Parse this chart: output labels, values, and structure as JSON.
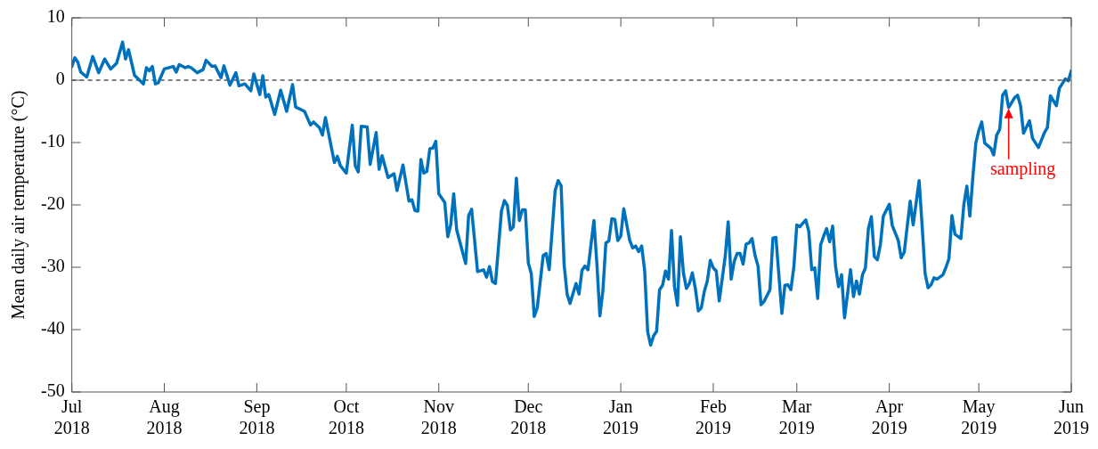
{
  "chart_data": {
    "type": "line",
    "ylabel": "Mean daily air temperature (°C)",
    "xlim": [
      "2018-07-01",
      "2019-06-01"
    ],
    "xticks": [
      {
        "value": "2018-07-01",
        "label": "Jul 2018"
      },
      {
        "value": "2018-08-01",
        "label": "Aug 2018"
      },
      {
        "value": "2018-09-01",
        "label": "Sep 2018"
      },
      {
        "value": "2018-10-01",
        "label": "Oct 2018"
      },
      {
        "value": "2018-11-01",
        "label": "Nov 2018"
      },
      {
        "value": "2018-12-01",
        "label": "Dec 2018"
      },
      {
        "value": "2019-01-01",
        "label": "Jan 2019"
      },
      {
        "value": "2019-02-01",
        "label": "Feb 2019"
      },
      {
        "value": "2019-03-01",
        "label": "Mar 2019"
      },
      {
        "value": "2019-04-01",
        "label": "Apr 2019"
      },
      {
        "value": "2019-05-01",
        "label": "May 2019"
      },
      {
        "value": "2019-06-01",
        "label": "Jun 2019"
      }
    ],
    "ylim": [
      -50,
      10
    ],
    "yticks": [
      -50,
      -40,
      -30,
      -20,
      -10,
      0,
      10
    ],
    "grid": false,
    "legend": false,
    "marker": "none",
    "line_style": "solid",
    "ref_lines": [
      {
        "axis": "y",
        "value": 0,
        "color": "#000000",
        "line_style": "dashed"
      }
    ],
    "annotations": [
      {
        "text": "sampling",
        "x": "2019-05-11",
        "y": -4.4
      }
    ],
    "x": [
      "2018-07-01",
      "2018-07-02",
      "2018-07-03",
      "2018-07-04",
      "2018-07-06",
      "2018-07-08",
      "2018-07-10",
      "2018-07-12",
      "2018-07-14",
      "2018-07-16",
      "2018-07-18",
      "2018-07-19",
      "2018-07-20",
      "2018-07-22",
      "2018-07-25",
      "2018-07-26",
      "2018-07-27",
      "2018-07-28",
      "2018-07-29",
      "2018-07-30",
      "2018-08-01",
      "2018-08-04",
      "2018-08-05",
      "2018-08-06",
      "2018-08-08",
      "2018-08-09",
      "2018-08-10",
      "2018-08-12",
      "2018-08-14",
      "2018-08-15",
      "2018-08-17",
      "2018-08-18",
      "2018-08-20",
      "2018-08-21",
      "2018-08-23",
      "2018-08-25",
      "2018-08-26",
      "2018-08-28",
      "2018-08-30",
      "2018-08-31",
      "2018-09-02",
      "2018-09-03",
      "2018-09-04",
      "2018-09-05",
      "2018-09-07",
      "2018-09-09",
      "2018-09-11",
      "2018-09-13",
      "2018-09-14",
      "2018-09-17",
      "2018-09-19",
      "2018-09-20",
      "2018-09-22",
      "2018-09-23",
      "2018-09-24",
      "2018-09-27",
      "2018-09-28",
      "2018-09-29",
      "2018-10-01",
      "2018-10-03",
      "2018-10-04",
      "2018-10-05",
      "2018-10-06",
      "2018-10-08",
      "2018-10-09",
      "2018-10-11",
      "2018-10-12",
      "2018-10-13",
      "2018-10-15",
      "2018-10-17",
      "2018-10-18",
      "2018-10-20",
      "2018-10-22",
      "2018-10-23",
      "2018-10-24",
      "2018-10-25",
      "2018-10-26",
      "2018-10-27",
      "2018-10-28",
      "2018-10-29",
      "2018-10-30",
      "2018-10-31",
      "2018-11-01",
      "2018-11-03",
      "2018-11-04",
      "2018-11-05",
      "2018-11-06",
      "2018-11-07",
      "2018-11-09",
      "2018-11-10",
      "2018-11-11",
      "2018-11-12",
      "2018-11-14",
      "2018-11-16",
      "2018-11-17",
      "2018-11-18",
      "2018-11-19",
      "2018-11-20",
      "2018-11-22",
      "2018-11-23",
      "2018-11-24",
      "2018-11-25",
      "2018-11-26",
      "2018-11-27",
      "2018-11-28",
      "2018-11-29",
      "2018-11-30",
      "2018-12-01",
      "2018-12-02",
      "2018-12-03",
      "2018-12-04",
      "2018-12-06",
      "2018-12-07",
      "2018-12-08",
      "2018-12-10",
      "2018-12-11",
      "2018-12-12",
      "2018-12-13",
      "2018-12-14",
      "2018-12-15",
      "2018-12-17",
      "2018-12-18",
      "2018-12-19",
      "2018-12-20",
      "2018-12-21",
      "2018-12-23",
      "2018-12-24",
      "2018-12-25",
      "2018-12-26",
      "2018-12-27",
      "2018-12-28",
      "2018-12-29",
      "2018-12-30",
      "2018-12-31",
      "2019-01-01",
      "2019-01-02",
      "2019-01-04",
      "2019-01-05",
      "2019-01-06",
      "2019-01-07",
      "2019-01-08",
      "2019-01-09",
      "2019-01-10",
      "2019-01-11",
      "2019-01-12",
      "2019-01-13",
      "2019-01-14",
      "2019-01-15",
      "2019-01-16",
      "2019-01-17",
      "2019-01-18",
      "2019-01-19",
      "2019-01-20",
      "2019-01-21",
      "2019-01-22",
      "2019-01-23",
      "2019-01-24",
      "2019-01-25",
      "2019-01-26",
      "2019-01-27",
      "2019-01-28",
      "2019-01-29",
      "2019-01-30",
      "2019-01-31",
      "2019-02-01",
      "2019-02-02",
      "2019-02-03",
      "2019-02-05",
      "2019-02-06",
      "2019-02-07",
      "2019-02-08",
      "2019-02-09",
      "2019-02-10",
      "2019-02-11",
      "2019-02-12",
      "2019-02-13",
      "2019-02-14",
      "2019-02-15",
      "2019-02-16",
      "2019-02-17",
      "2019-02-18",
      "2019-02-20",
      "2019-02-21",
      "2019-02-22",
      "2019-02-24",
      "2019-02-25",
      "2019-02-26",
      "2019-02-27",
      "2019-02-28",
      "2019-03-01",
      "2019-03-02",
      "2019-03-04",
      "2019-03-05",
      "2019-03-06",
      "2019-03-07",
      "2019-03-08",
      "2019-03-09",
      "2019-03-10",
      "2019-03-11",
      "2019-03-12",
      "2019-03-13",
      "2019-03-14",
      "2019-03-15",
      "2019-03-16",
      "2019-03-17",
      "2019-03-18",
      "2019-03-19",
      "2019-03-20",
      "2019-03-21",
      "2019-03-22",
      "2019-03-23",
      "2019-03-24",
      "2019-03-25",
      "2019-03-26",
      "2019-03-27",
      "2019-03-28",
      "2019-03-29",
      "2019-03-30",
      "2019-04-01",
      "2019-04-02",
      "2019-04-04",
      "2019-04-05",
      "2019-04-06",
      "2019-04-08",
      "2019-04-09",
      "2019-04-11",
      "2019-04-12",
      "2019-04-13",
      "2019-04-14",
      "2019-04-15",
      "2019-04-16",
      "2019-04-17",
      "2019-04-19",
      "2019-04-20",
      "2019-04-21",
      "2019-04-22",
      "2019-04-23",
      "2019-04-25",
      "2019-04-26",
      "2019-04-27",
      "2019-04-28",
      "2019-04-29",
      "2019-04-30",
      "2019-05-01",
      "2019-05-02",
      "2019-05-03",
      "2019-05-05",
      "2019-05-06",
      "2019-05-07",
      "2019-05-08",
      "2019-05-09",
      "2019-05-10",
      "2019-05-11",
      "2019-05-13",
      "2019-05-14",
      "2019-05-15",
      "2019-05-16",
      "2019-05-18",
      "2019-05-19",
      "2019-05-21",
      "2019-05-23",
      "2019-05-24",
      "2019-05-25",
      "2019-05-27",
      "2019-05-28",
      "2019-05-30",
      "2019-05-31",
      "2019-06-01"
    ],
    "series": [
      {
        "color": "#0072bd",
        "values": [
          2.2,
          3.6,
          2.9,
          1.3,
          0.5,
          3.8,
          1.2,
          3.4,
          1.8,
          2.7,
          6.1,
          3.4,
          4.9,
          0.8,
          -0.6,
          2.0,
          1.5,
          2.2,
          -0.6,
          -0.4,
          1.8,
          2.2,
          1.3,
          2.5,
          2.0,
          2.2,
          2.0,
          1.2,
          1.7,
          3.2,
          2.2,
          2.3,
          0.4,
          2.3,
          -0.8,
          1.2,
          -0.9,
          -0.6,
          -1.7,
          1.0,
          -2.3,
          0.7,
          -2.7,
          -2.3,
          -5.5,
          -1.6,
          -5.0,
          -0.7,
          -4.3,
          -5.0,
          -7.2,
          -6.7,
          -7.6,
          -8.8,
          -6.0,
          -13.2,
          -12.2,
          -13.7,
          -14.9,
          -7.2,
          -13.7,
          -14.7,
          -7.4,
          -7.5,
          -13.5,
          -8.4,
          -14.3,
          -12.1,
          -15.6,
          -15.0,
          -17.7,
          -13.6,
          -19.4,
          -19.2,
          -20.9,
          -21.0,
          -12.7,
          -14.9,
          -14.6,
          -11.0,
          -10.9,
          -9.8,
          -18.2,
          -19.6,
          -25.1,
          -23.2,
          -18.2,
          -24.0,
          -27.6,
          -29.4,
          -21.7,
          -20.7,
          -30.7,
          -30.4,
          -31.6,
          -29.9,
          -32.3,
          -32.6,
          -21.0,
          -19.3,
          -20.1,
          -24.0,
          -23.5,
          -15.7,
          -22.5,
          -20.8,
          -20.8,
          -29.3,
          -31.0,
          -37.9,
          -36.5,
          -28.1,
          -27.8,
          -30.4,
          -17.7,
          -16.1,
          -16.9,
          -29.5,
          -34.3,
          -35.8,
          -32.6,
          -34.3,
          -30.5,
          -29.8,
          -30.4,
          -22.5,
          -29.5,
          -37.8,
          -33.8,
          -26.1,
          -25.8,
          -22.2,
          -22.3,
          -25.7,
          -25.0,
          -20.6,
          -25.7,
          -26.9,
          -26.6,
          -27.5,
          -26.6,
          -30.5,
          -40.3,
          -42.5,
          -41.0,
          -40.3,
          -33.6,
          -32.9,
          -30.6,
          -31.9,
          -24.1,
          -33.1,
          -36.1,
          -25.1,
          -30.9,
          -33.4,
          -32.6,
          -30.9,
          -33.4,
          -37.0,
          -36.5,
          -33.9,
          -32.2,
          -28.9,
          -30.1,
          -30.6,
          -35.4,
          -28.3,
          -22.7,
          -31.9,
          -29.1,
          -27.8,
          -27.8,
          -29.5,
          -26.3,
          -26.1,
          -25.4,
          -28.1,
          -29.8,
          -36.0,
          -35.5,
          -33.6,
          -25.3,
          -25.2,
          -37.4,
          -32.9,
          -32.8,
          -33.6,
          -30.0,
          -23.2,
          -23.5,
          -22.4,
          -24.2,
          -30.4,
          -30.1,
          -35.0,
          -26.4,
          -25.0,
          -23.8,
          -25.9,
          -23.4,
          -29.9,
          -33.1,
          -31.2,
          -38.1,
          -34.3,
          -30.4,
          -34.7,
          -32.2,
          -34.3,
          -31.2,
          -30.1,
          -23.8,
          -21.9,
          -28.3,
          -28.8,
          -26.4,
          -21.8,
          -19.9,
          -23.3,
          -25.7,
          -28.5,
          -27.6,
          -19.4,
          -23.2,
          -16.1,
          -23.3,
          -31.0,
          -33.3,
          -32.8,
          -31.7,
          -31.9,
          -31.2,
          -30.0,
          -28.6,
          -21.7,
          -24.7,
          -25.4,
          -19.9,
          -17.0,
          -21.8,
          -15.6,
          -10.1,
          -8.1,
          -6.7,
          -10.1,
          -10.9,
          -12.0,
          -8.8,
          -7.9,
          -2.4,
          -1.7,
          -4.4,
          -2.8,
          -2.4,
          -4.1,
          -8.5,
          -6.5,
          -9.3,
          -10.8,
          -8.4,
          -7.6,
          -2.5,
          -4.1,
          -1.3,
          0.2,
          -0.1,
          1.5
        ]
      }
    ]
  }
}
